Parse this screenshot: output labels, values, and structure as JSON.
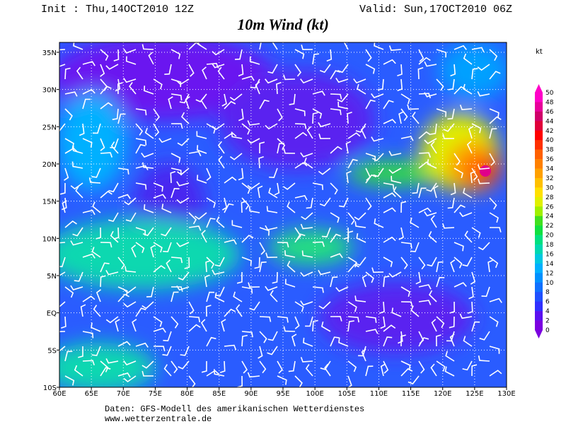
{
  "header": {
    "init": "Init : Thu,14OCT2010 12Z",
    "valid": "Valid: Sun,17OCT2010 06Z",
    "title": "10m Wind (kt)"
  },
  "map": {
    "lon_labels": [
      "60E",
      "65E",
      "70E",
      "75E",
      "80E",
      "85E",
      "90E",
      "95E",
      "100E",
      "105E",
      "110E",
      "115E",
      "120E",
      "125E",
      "130E"
    ],
    "lat_labels": [
      "35N",
      "30N",
      "25N",
      "20N",
      "15N",
      "10N",
      "5N",
      "EQ",
      "5S",
      "10S"
    ]
  },
  "colorbar": {
    "unit": "kt",
    "labels": [
      "50",
      "48",
      "46",
      "44",
      "42",
      "40",
      "38",
      "36",
      "34",
      "32",
      "30",
      "28",
      "26",
      "24",
      "22",
      "20",
      "18",
      "16",
      "14",
      "12",
      "10",
      "8",
      "6",
      "4",
      "2",
      "0"
    ],
    "colors": [
      "#ff00c8",
      "#e8009a",
      "#d0006a",
      "#e0003a",
      "#ff0000",
      "#ff3000",
      "#ff6000",
      "#ff8000",
      "#ffa000",
      "#ffc000",
      "#ffe000",
      "#e0f000",
      "#a0f000",
      "#40e020",
      "#10e040",
      "#00e080",
      "#00d8b0",
      "#00c8e0",
      "#00b0ff",
      "#0090ff",
      "#1070ff",
      "#2050ff",
      "#3030ff",
      "#5a10f0",
      "#7b00e0"
    ]
  },
  "footer": {
    "line1": "Daten: GFS-Modell des amerikanischen Wetterdienstes",
    "line2": "www.wetterzentrale.de"
  }
}
